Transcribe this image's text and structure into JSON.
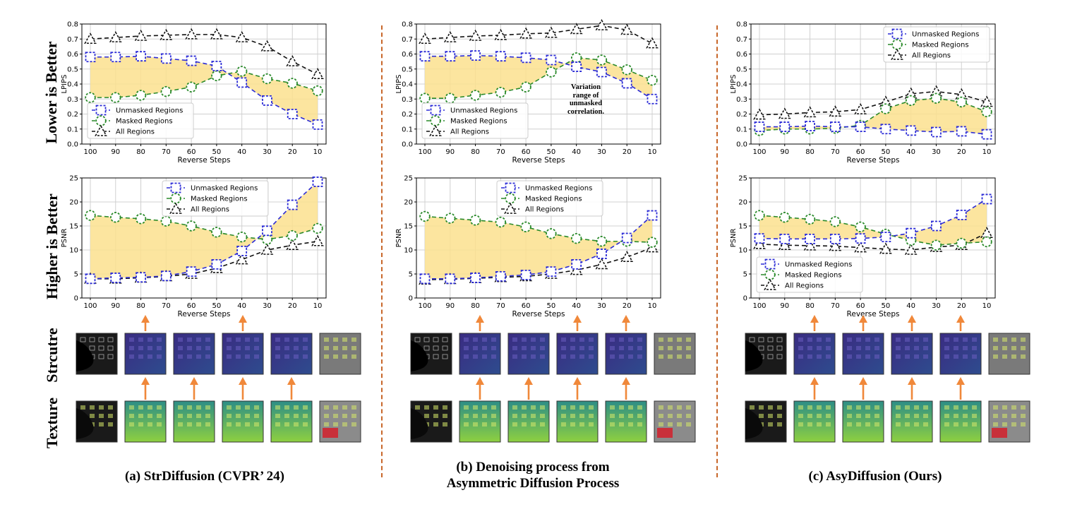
{
  "row_labels": {
    "lpips_row": "Lower is Better",
    "psnr_row": "Higher is Better",
    "structure_row": "Strcutre",
    "texture_row": "Texture"
  },
  "captions": {
    "a": "(a) StrDiffusion (CVPR’ 24)",
    "b_line1": "(b) Denoising process from",
    "b_line2": "Asymmetric Diffusion Process",
    "c": "(c) AsyDiffusion (Ours)"
  },
  "colors": {
    "unmasked": "#2b2bd6",
    "masked": "#2a8a2a",
    "all": "#111111",
    "fill": "#fbe08e",
    "arrow": "#f0883a",
    "divider": "#c8672a"
  },
  "annotation": {
    "text_lines": [
      "Variation",
      "range of",
      "unmasked",
      "correlation."
    ]
  },
  "chart_data": [
    {
      "id": "a_lpips",
      "type": "line",
      "xlabel": "Reverse Steps",
      "ylabel": "LPIPS",
      "x": [
        100,
        90,
        80,
        70,
        60,
        50,
        40,
        30,
        20,
        10
      ],
      "ylim": [
        0.0,
        0.8
      ],
      "yticks": [
        "0.0",
        "0.1",
        "0.2",
        "0.3",
        "0.4",
        "0.5",
        "0.6",
        "0.7",
        "0.8"
      ],
      "legend_position": "lower-left",
      "grid": true,
      "series": [
        {
          "name": "Unmasked Regions",
          "values": [
            0.58,
            0.58,
            0.585,
            0.57,
            0.555,
            0.52,
            0.41,
            0.29,
            0.2,
            0.13
          ]
        },
        {
          "name": "Masked Regions",
          "values": [
            0.31,
            0.31,
            0.325,
            0.35,
            0.38,
            0.455,
            0.485,
            0.435,
            0.405,
            0.355
          ]
        },
        {
          "name": "All Regions",
          "values": [
            0.7,
            0.71,
            0.72,
            0.725,
            0.73,
            0.73,
            0.71,
            0.65,
            0.55,
            0.465
          ]
        }
      ]
    },
    {
      "id": "a_psnr",
      "type": "line",
      "xlabel": "Reverse Steps",
      "ylabel": "PSNR",
      "x": [
        100,
        90,
        80,
        70,
        60,
        50,
        40,
        30,
        20,
        10
      ],
      "ylim": [
        0,
        25
      ],
      "yticks": [
        "0",
        "5",
        "10",
        "15",
        "20",
        "25"
      ],
      "legend_position": "upper-center",
      "grid": true,
      "series": [
        {
          "name": "Unmasked Regions",
          "values": [
            4.0,
            4.2,
            4.3,
            4.6,
            5.5,
            7.0,
            9.8,
            14.0,
            19.4,
            24.2
          ]
        },
        {
          "name": "Masked Regions",
          "values": [
            17.2,
            16.8,
            16.5,
            16.0,
            15.0,
            13.7,
            12.7,
            12.2,
            13.0,
            14.5
          ]
        },
        {
          "name": "All Regions",
          "values": [
            4.0,
            4.0,
            4.2,
            4.5,
            5.0,
            6.2,
            8.0,
            10.0,
            11.0,
            11.8
          ]
        }
      ]
    },
    {
      "id": "b_lpips",
      "type": "line",
      "xlabel": "Reverse Steps",
      "ylabel": "LPIPS",
      "x": [
        100,
        90,
        80,
        70,
        60,
        50,
        40,
        30,
        20,
        10
      ],
      "ylim": [
        0.0,
        0.8
      ],
      "yticks": [
        "0.0",
        "0.1",
        "0.2",
        "0.3",
        "0.4",
        "0.5",
        "0.6",
        "0.7",
        "0.8"
      ],
      "legend_position": "lower-left",
      "grid": true,
      "series": [
        {
          "name": "Unmasked Regions",
          "values": [
            0.585,
            0.585,
            0.59,
            0.585,
            0.575,
            0.56,
            0.515,
            0.48,
            0.405,
            0.3
          ]
        },
        {
          "name": "Masked Regions",
          "values": [
            0.305,
            0.305,
            0.325,
            0.345,
            0.38,
            0.48,
            0.575,
            0.56,
            0.495,
            0.425
          ]
        },
        {
          "name": "All Regions",
          "values": [
            0.7,
            0.71,
            0.72,
            0.725,
            0.735,
            0.74,
            0.765,
            0.79,
            0.76,
            0.67
          ]
        }
      ]
    },
    {
      "id": "b_psnr",
      "type": "line",
      "xlabel": "Reverse Steps",
      "ylabel": "PSNR",
      "x": [
        100,
        90,
        80,
        70,
        60,
        50,
        40,
        30,
        20,
        10
      ],
      "ylim": [
        0,
        25
      ],
      "yticks": [
        "0",
        "5",
        "10",
        "15",
        "20",
        "25"
      ],
      "legend_position": "upper-center",
      "grid": true,
      "series": [
        {
          "name": "Unmasked Regions",
          "values": [
            4.0,
            4.0,
            4.2,
            4.5,
            4.8,
            5.5,
            7.0,
            9.2,
            12.5,
            17.2
          ]
        },
        {
          "name": "Masked Regions",
          "values": [
            17.0,
            16.6,
            16.2,
            15.8,
            14.8,
            13.4,
            12.4,
            11.8,
            11.8,
            11.6
          ]
        },
        {
          "name": "All Regions",
          "values": [
            3.8,
            3.9,
            4.1,
            4.3,
            4.5,
            5.0,
            5.8,
            7.0,
            8.5,
            10.5
          ]
        }
      ]
    },
    {
      "id": "c_lpips",
      "type": "line",
      "xlabel": "Reverse Steps",
      "ylabel": "LPIPS",
      "x": [
        100,
        90,
        80,
        70,
        60,
        50,
        40,
        30,
        20,
        10
      ],
      "ylim": [
        0.0,
        0.8
      ],
      "yticks": [
        "0.0",
        "0.1",
        "0.2",
        "0.3",
        "0.4",
        "0.5",
        "0.6",
        "0.7",
        "0.8"
      ],
      "legend_position": "upper-right",
      "grid": true,
      "series": [
        {
          "name": "Unmasked Regions",
          "values": [
            0.115,
            0.115,
            0.12,
            0.115,
            0.115,
            0.1,
            0.09,
            0.08,
            0.085,
            0.065
          ]
        },
        {
          "name": "Masked Regions",
          "values": [
            0.09,
            0.1,
            0.1,
            0.105,
            0.125,
            0.235,
            0.29,
            0.305,
            0.28,
            0.215
          ]
        },
        {
          "name": "All Regions",
          "values": [
            0.195,
            0.2,
            0.21,
            0.215,
            0.23,
            0.28,
            0.335,
            0.35,
            0.33,
            0.28
          ]
        }
      ]
    },
    {
      "id": "c_psnr",
      "type": "line",
      "xlabel": "Reverse Steps",
      "ylabel": "PSNR",
      "x": [
        100,
        90,
        80,
        70,
        60,
        50,
        40,
        30,
        20,
        10
      ],
      "ylim": [
        0,
        25
      ],
      "yticks": [
        "0",
        "5",
        "10",
        "15",
        "20",
        "25"
      ],
      "legend_position": "lower-left",
      "grid": true,
      "series": [
        {
          "name": "Unmasked Regions",
          "values": [
            12.4,
            12.3,
            12.3,
            12.3,
            12.4,
            12.7,
            13.5,
            15.0,
            17.3,
            20.6
          ]
        },
        {
          "name": "Masked Regions",
          "values": [
            17.2,
            16.8,
            16.4,
            15.9,
            14.8,
            13.3,
            12.0,
            11.0,
            11.4,
            11.7
          ]
        },
        {
          "name": "All Regions",
          "values": [
            11.2,
            11.0,
            10.9,
            10.8,
            10.5,
            10.2,
            10.0,
            10.6,
            11.0,
            13.5
          ]
        }
      ]
    }
  ],
  "thumbnail_rows": {
    "structure": [
      "edge-map",
      "feature-map",
      "feature-map",
      "feature-map",
      "feature-map",
      "output-grayscale"
    ],
    "texture": [
      "masked-input",
      "feature-map",
      "feature-map",
      "feature-map",
      "feature-map",
      "output-color"
    ]
  }
}
